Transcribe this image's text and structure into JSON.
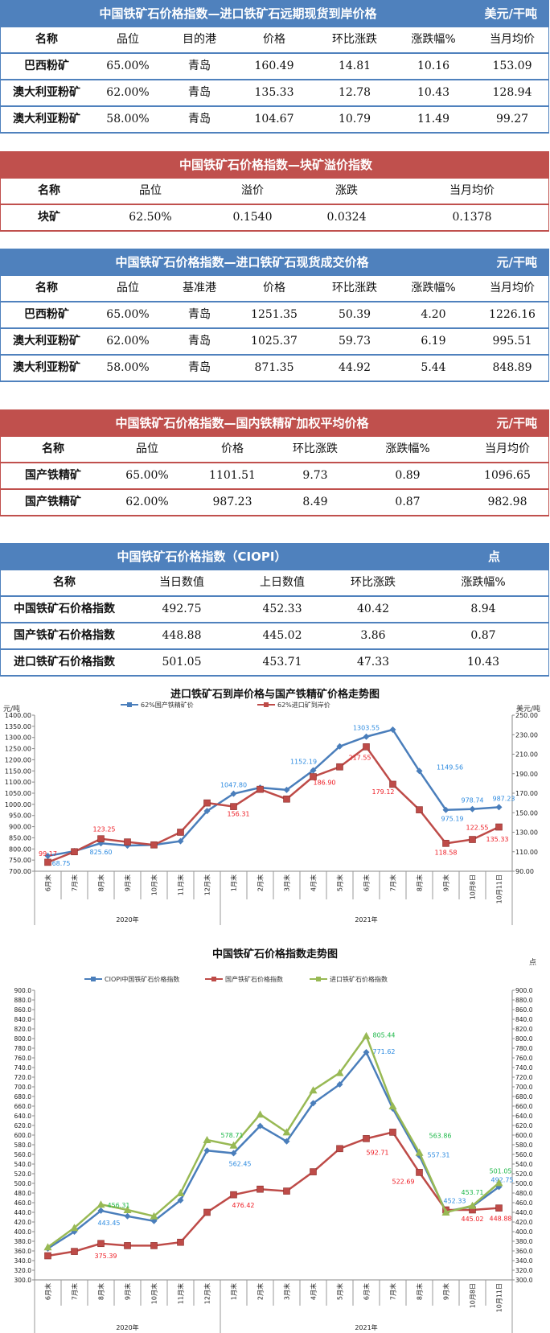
{
  "tables": [
    {
      "title": "中国铁矿石价格指数—进口铁矿石远期现货到岸价格",
      "unit": "美元/干吨",
      "theme": "blue",
      "headers": [
        "名称",
        "品位",
        "目的港",
        "价格",
        "环比涨跌",
        "涨跌幅%",
        "当月均价"
      ],
      "rows": [
        [
          "巴西粉矿",
          "65.00%",
          "青岛",
          "160.49",
          "14.81",
          "10.16",
          "153.09"
        ],
        [
          "澳大利亚粉矿",
          "62.00%",
          "青岛",
          "135.33",
          "12.78",
          "10.43",
          "128.94"
        ],
        [
          "澳大利亚粉矿",
          "58.00%",
          "青岛",
          "104.67",
          "10.79",
          "11.49",
          "99.27"
        ]
      ]
    },
    {
      "title": "中国铁矿石价格指数—块矿溢价指数",
      "unit": "",
      "theme": "red",
      "headers": [
        "名称",
        "品位",
        "溢价",
        "涨跌",
        "当月均价"
      ],
      "rows": [
        [
          "块矿",
          "62.50%",
          "0.1540",
          "0.0324",
          "0.1378"
        ]
      ]
    },
    {
      "title": "中国铁矿石价格指数—进口铁矿石现货成交价格",
      "unit": "元/干吨",
      "theme": "blue",
      "headers": [
        "名称",
        "品位",
        "基准港",
        "价格",
        "环比涨跌",
        "涨跌幅%",
        "当月均价"
      ],
      "rows": [
        [
          "巴西粉矿",
          "65.00%",
          "青岛",
          "1251.35",
          "50.39",
          "4.20",
          "1226.16"
        ],
        [
          "澳大利亚粉矿",
          "62.00%",
          "青岛",
          "1025.37",
          "59.73",
          "6.19",
          "995.51"
        ],
        [
          "澳大利亚粉矿",
          "58.00%",
          "青岛",
          "871.35",
          "44.92",
          "5.44",
          "848.89"
        ]
      ]
    },
    {
      "title": "中国铁矿石价格指数—国内铁精矿加权平均价格",
      "unit": "元/干吨",
      "theme": "red",
      "headers": [
        "名称",
        "品位",
        "价格",
        "环比涨跌",
        "涨跌幅%",
        "当月均价"
      ],
      "rows": [
        [
          "国产铁精矿",
          "65.00%",
          "1101.51",
          "9.73",
          "0.89",
          "1096.65"
        ],
        [
          "国产铁精矿",
          "62.00%",
          "987.23",
          "8.49",
          "0.87",
          "982.98"
        ]
      ]
    },
    {
      "title": "中国铁矿石价格指数（CIOPI）",
      "unit": "点",
      "theme": "blue",
      "headers": [
        "名称",
        "当日数值",
        "上日数值",
        "环比涨跌",
        "涨跌幅%"
      ],
      "rows": [
        [
          "中国铁矿石价格指数",
          "492.75",
          "452.33",
          "40.42",
          "8.94"
        ],
        [
          "国产铁矿石价格指数",
          "448.88",
          "445.02",
          "3.86",
          "0.87"
        ],
        [
          "进口铁矿石价格指数",
          "501.05",
          "453.71",
          "47.33",
          "10.43"
        ]
      ]
    }
  ],
  "chart_data": [
    {
      "type": "line",
      "title": "进口铁矿石到岸价格与国产铁精矿价格走势图",
      "ylabel_left": "元/吨",
      "ylabel_right": "美元/吨",
      "ylim_left": [
        700,
        1400
      ],
      "ystep_left": 50,
      "ylim_right": [
        90,
        250
      ],
      "ystep_right": 20,
      "categories": [
        "6月末",
        "7月末",
        "8月末",
        "9月末",
        "10月末",
        "11月末",
        "12月末",
        "1月末",
        "2月末",
        "3月末",
        "4月末",
        "5月末",
        "6月末",
        "7月末",
        "8月末",
        "9月末",
        "10月8日",
        "10月11日"
      ],
      "year_groups": [
        {
          "label": "2020年",
          "count": 7
        },
        {
          "label": "2021年",
          "count": 11
        }
      ],
      "grid": false,
      "legend": "top",
      "series": [
        {
          "name": "62%国产铁精矿价",
          "axis": "left",
          "color": "#4a7ebb",
          "marker": "diamond",
          "values": [
            768.75,
            790,
            825.6,
            815,
            818,
            835,
            970,
            1047.8,
            1075,
            1065,
            1152.19,
            1260,
            1303.55,
            1335,
            1149.56,
            975.19,
            978.74,
            987.23
          ],
          "labeled": [
            0,
            2,
            7,
            10,
            12,
            14,
            15,
            16,
            17
          ]
        },
        {
          "name": "62%进口矿到岸价",
          "axis": "right",
          "color": "#be4b48",
          "marker": "square",
          "values": [
            99.17,
            110,
            123.25,
            120,
            117,
            130,
            160,
            156.31,
            174,
            164,
            186.9,
            197,
            217.55,
            179.12,
            153,
            118.58,
            122.55,
            135.33
          ],
          "labeled": [
            0,
            2,
            7,
            10,
            12,
            13,
            15,
            16,
            17
          ]
        }
      ]
    },
    {
      "type": "line",
      "title": "中国铁矿石价格指数走势图",
      "ylabel_left": "",
      "ylabel_right": "点",
      "ylim_left": [
        300,
        900
      ],
      "ystep_left": 20,
      "ylim_right": [
        300,
        900
      ],
      "ystep_right": 20,
      "categories": [
        "6月末",
        "7月末",
        "8月末",
        "9月末",
        "10月末",
        "11月末",
        "12月末",
        "1月末",
        "2月末",
        "3月末",
        "4月末",
        "5月末",
        "6月末",
        "7月末",
        "8月末",
        "9月末",
        "10月8日",
        "10月11日"
      ],
      "year_groups": [
        {
          "label": "2020年",
          "count": 7
        },
        {
          "label": "2021年",
          "count": 11
        }
      ],
      "grid": false,
      "legend": "top",
      "series": [
        {
          "name": "CIOPI中国铁矿石价格指数",
          "axis": "left",
          "color": "#4a7ebb",
          "marker": "diamond",
          "values": [
            365,
            400,
            443.45,
            432,
            422,
            465,
            568,
            562.45,
            619,
            587,
            666,
            705,
            771.62,
            655,
            557.31,
            442,
            452.33,
            492.75
          ],
          "labeled": [
            2,
            7,
            12,
            14,
            16,
            17
          ]
        },
        {
          "name": "国产铁矿石价格指数",
          "axis": "left",
          "color": "#be4b48",
          "marker": "square",
          "values": [
            350,
            359,
            375.39,
            371,
            371,
            378,
            440,
            476.42,
            488,
            484,
            524,
            572,
            592.71,
            606,
            522.69,
            445,
            445.02,
            448.88
          ],
          "labeled": [
            2,
            7,
            12,
            14,
            16,
            17
          ]
        },
        {
          "name": "进口铁矿石价格指数",
          "axis": "left",
          "color": "#98b954",
          "marker": "triangle",
          "values": [
            368,
            408,
            456.31,
            445,
            432,
            480,
            590,
            578.71,
            643,
            606,
            693,
            729,
            805.44,
            660,
            563.86,
            440,
            453.71,
            501.05
          ],
          "labeled": [
            2,
            7,
            12,
            14,
            16,
            17
          ]
        }
      ]
    }
  ],
  "colors": {
    "blue_header": "#4f81bd",
    "red_header": "#c0504d"
  }
}
